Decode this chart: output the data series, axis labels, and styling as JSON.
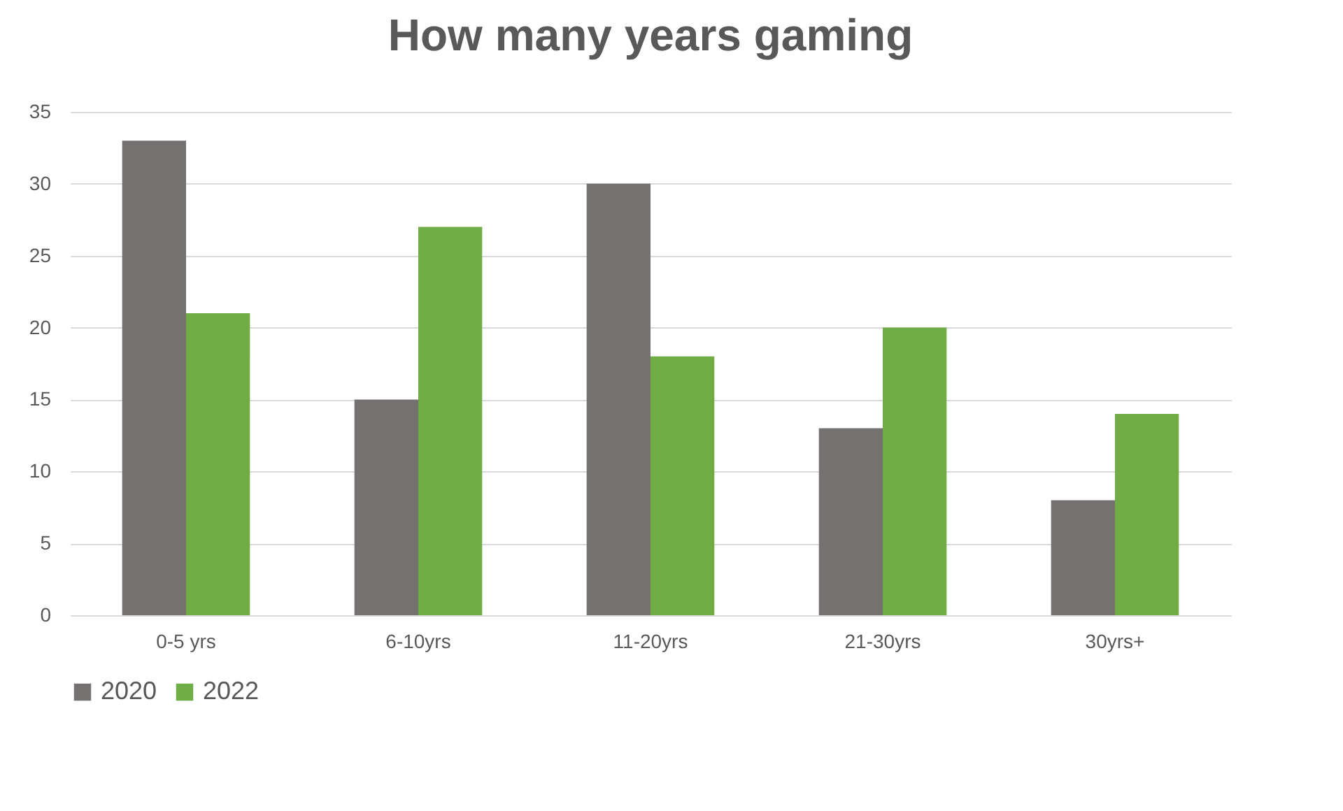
{
  "chart_data": {
    "type": "bar",
    "title": "How many years gaming",
    "categories": [
      "0-5 yrs",
      "6-10yrs",
      "11-20yrs",
      "21-30yrs",
      "30yrs+"
    ],
    "series": [
      {
        "name": "2020",
        "color": "#767171",
        "values": [
          33,
          15,
          30,
          13,
          8
        ]
      },
      {
        "name": "2022",
        "color": "#70ad47",
        "values": [
          21,
          27,
          18,
          20,
          14
        ]
      }
    ],
    "ylim": [
      0,
      35
    ],
    "yticks": [
      0,
      5,
      10,
      15,
      20,
      25,
      30,
      35
    ],
    "grid": "y",
    "legend": "bottom"
  }
}
